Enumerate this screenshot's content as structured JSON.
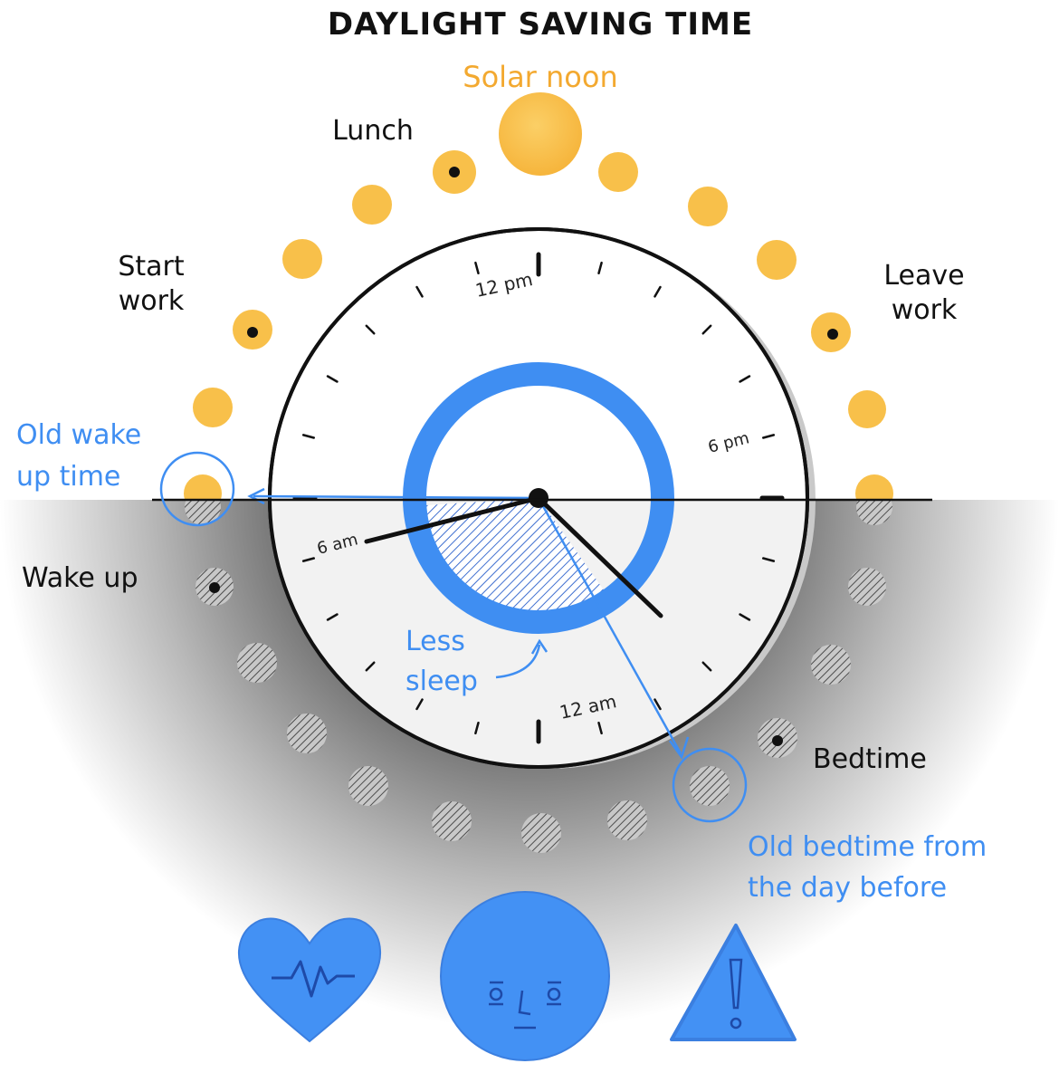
{
  "title": "DAYLIGHT SAVING TIME",
  "labels": {
    "solar_noon": "Solar noon",
    "lunch": "Lunch",
    "start_work_1": "Start",
    "start_work_2": "work",
    "leave_work_1": "Leave",
    "leave_work_2": "work",
    "old_wake_1": "Old wake",
    "old_wake_2": "up time",
    "wake_up": "Wake up",
    "less_sleep_1": "Less",
    "less_sleep_2": "sleep",
    "bedtime": "Bedtime",
    "old_bedtime_1": "Old bedtime from",
    "old_bedtime_2": "the day before"
  },
  "clock": {
    "label_12pm": "12 pm",
    "label_6pm": "6 pm",
    "label_6am": "6 am",
    "label_12am": "12 am"
  },
  "colors": {
    "sun": "#f8c04a",
    "solar_noon_text": "#f3a930",
    "blue": "#3f8ef2",
    "icon_blue": "#4391f4",
    "ink": "#111111"
  },
  "icons": [
    "heart-rate-icon",
    "tired-face-icon",
    "warning-icon"
  ]
}
